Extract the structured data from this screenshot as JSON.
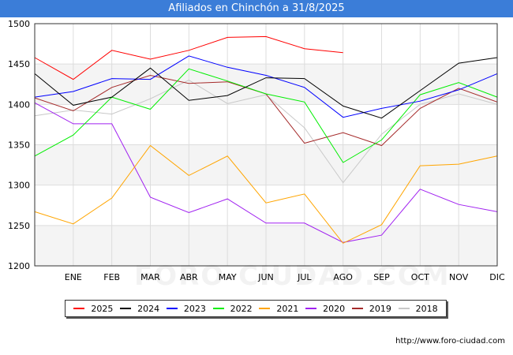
{
  "title": "Afiliados en Chinchón a 31/8/2025",
  "source": "http://www.foro-ciudad.com",
  "watermark": "FORO-CIUDAD.COM",
  "chart_data": {
    "type": "line",
    "title": "Afiliados en Chinchón a 31/8/2025",
    "xlabel": "",
    "ylabel": "",
    "categories": [
      "",
      "ENE",
      "FEB",
      "MAR",
      "ABR",
      "MAY",
      "JUN",
      "JUL",
      "AGO",
      "SEP",
      "OCT",
      "NOV",
      "DIC"
    ],
    "yticks": [
      1200,
      1250,
      1300,
      1350,
      1400,
      1450,
      1500
    ],
    "ylim": [
      1200,
      1500
    ],
    "grid": true,
    "legend_position": "bottom",
    "series": [
      {
        "name": "2025",
        "color": "#ff0000",
        "values": [
          1458,
          1431,
          1467,
          1456,
          1467,
          1483,
          1484,
          1469,
          1464,
          null,
          null,
          null,
          null
        ]
      },
      {
        "name": "2024",
        "color": "#000000",
        "values": [
          1438,
          1399,
          1409,
          1445,
          1405,
          1411,
          1433,
          1432,
          1398,
          1383,
          1417,
          1451,
          1458
        ]
      },
      {
        "name": "2023",
        "color": "#0000ff",
        "values": [
          1409,
          1416,
          1432,
          1431,
          1460,
          1446,
          1436,
          1421,
          1384,
          1395,
          1404,
          1418,
          1438
        ]
      },
      {
        "name": "2022",
        "color": "#00ee00",
        "values": [
          1336,
          1362,
          1409,
          1394,
          1444,
          1429,
          1413,
          1403,
          1328,
          1356,
          1412,
          1427,
          1409
        ]
      },
      {
        "name": "2021",
        "color": "#ffa500",
        "values": [
          1267,
          1252,
          1284,
          1349,
          1312,
          1336,
          1278,
          1289,
          1228,
          1251,
          1324,
          1326,
          1336
        ]
      },
      {
        "name": "2020",
        "color": "#a020f0",
        "values": [
          1402,
          1376,
          1376,
          1285,
          1266,
          1283,
          1253,
          1253,
          1229,
          1238,
          1295,
          1276,
          1267
        ]
      },
      {
        "name": "2019",
        "color": "#a52a2a",
        "values": [
          1408,
          1392,
          1421,
          1436,
          1426,
          1428,
          1413,
          1352,
          1365,
          1349,
          1395,
          1420,
          1403
        ]
      },
      {
        "name": "2018",
        "color": "#c8c8c8",
        "values": [
          1386,
          1393,
          1388,
          1407,
          1430,
          1401,
          1412,
          1371,
          1303,
          1363,
          1400,
          1413,
          1400
        ]
      }
    ]
  }
}
